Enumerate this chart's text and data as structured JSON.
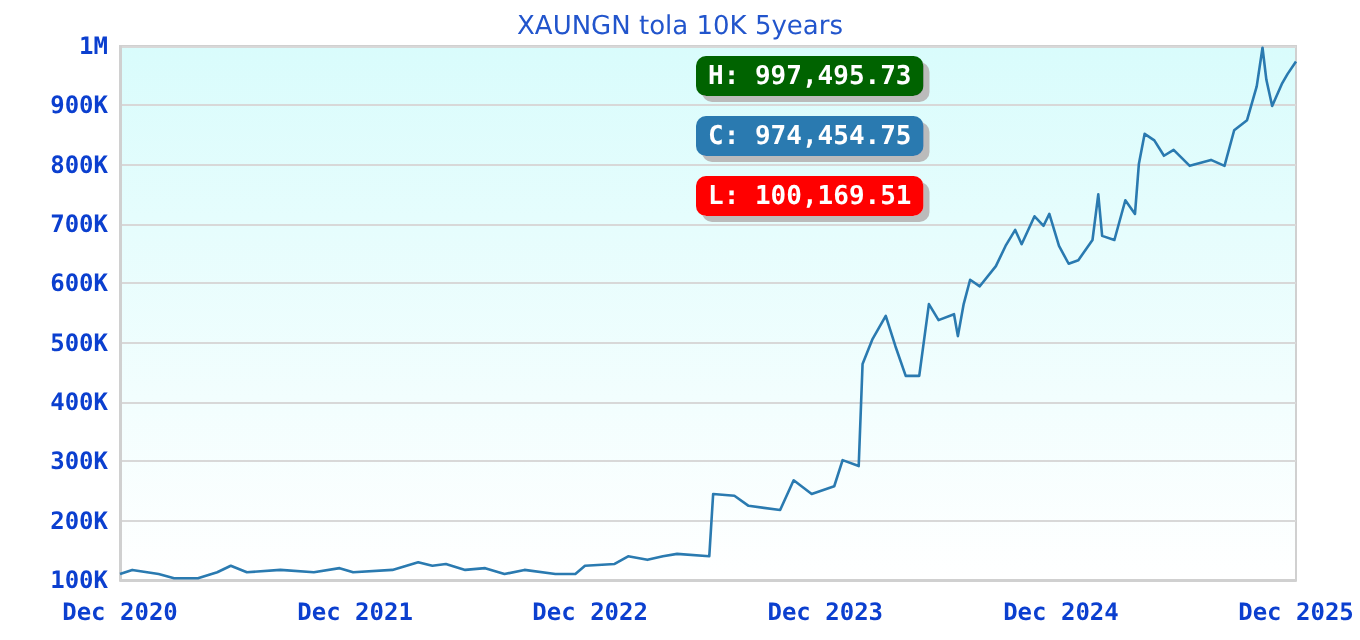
{
  "chart_data": {
    "type": "line",
    "title": "XAUNGN tola 10K 5years",
    "annotations": [
      "H: 997,495.73",
      "C: 974,454.75",
      "L: 100,169.51"
    ],
    "x": [
      "2020-12-01",
      "2020-12-20",
      "2021-01-30",
      "2021-02-23",
      "2021-04-01",
      "2021-05-01",
      "2021-05-22",
      "2021-06-16",
      "2021-08-07",
      "2021-09-28",
      "2021-11-07",
      "2021-11-28",
      "2022-01-28",
      "2022-03-09",
      "2022-03-31",
      "2022-04-21",
      "2022-05-21",
      "2022-06-21",
      "2022-07-21",
      "2022-08-21",
      "2022-10-08",
      "2022-11-08",
      "2022-11-23",
      "2023-01-08",
      "2023-01-29",
      "2023-02-28",
      "2023-03-24",
      "2023-04-15",
      "2023-06-04",
      "2023-06-10",
      "2023-07-13",
      "2023-08-04",
      "2023-09-22",
      "2023-10-13",
      "2023-11-10",
      "2023-12-15",
      "2023-12-28",
      "2024-01-22",
      "2024-01-28",
      "2024-02-12",
      "2024-03-04",
      "2024-03-19",
      "2024-04-04",
      "2024-04-25",
      "2024-05-10",
      "2024-05-25",
      "2024-06-18",
      "2024-06-24",
      "2024-07-03",
      "2024-07-13",
      "2024-07-28",
      "2024-08-22",
      "2024-09-06",
      "2024-09-21",
      "2024-10-01",
      "2024-10-21",
      "2024-11-04",
      "2024-11-13",
      "2024-11-28",
      "2024-12-13",
      "2024-12-28",
      "2025-01-19",
      "2025-01-28",
      "2025-02-03",
      "2025-02-22",
      "2025-03-11",
      "2025-03-26",
      "2025-04-01",
      "2025-04-10",
      "2025-04-25",
      "2025-05-10",
      "2025-05-25",
      "2025-06-19",
      "2025-07-22",
      "2025-08-12",
      "2025-08-27",
      "2025-09-16",
      "2025-10-01",
      "2025-10-10",
      "2025-10-16",
      "2025-10-25",
      "2025-11-09",
      "2025-11-18",
      "2025-12-01"
    ],
    "series": [
      {
        "color": "#2a7ab0",
        "values": [
          110000,
          117000,
          110000,
          103000,
          103000,
          113000,
          124000,
          113000,
          117000,
          113000,
          120000,
          113000,
          117000,
          130000,
          124000,
          127000,
          117000,
          120000,
          110000,
          117000,
          110000,
          110000,
          124000,
          127000,
          140000,
          134000,
          140000,
          144000,
          140000,
          245000,
          242000,
          225000,
          218000,
          268000,
          245000,
          258000,
          302000,
          292000,
          464000,
          505000,
          545000,
          494000,
          444000,
          444000,
          565000,
          538000,
          548000,
          511000,
          565000,
          606000,
          595000,
          629000,
          663000,
          690000,
          666000,
          713000,
          697000,
          717000,
          663000,
          633000,
          639000,
          673000,
          750000,
          680000,
          673000,
          740000,
          717000,
          801000,
          852000,
          841000,
          815000,
          825000,
          798000,
          808000,
          798000,
          858000,
          875000,
          932000,
          997000,
          943000,
          899000,
          936000,
          953000,
          974000
        ]
      }
    ],
    "xlim": [
      "2020-12-01",
      "2025-12-01"
    ],
    "xticks": [
      {
        "value": "2020-12-01",
        "label": "Dec 2020"
      },
      {
        "value": "2021-12-01",
        "label": "Dec 2021"
      },
      {
        "value": "2022-12-01",
        "label": "Dec 2022"
      },
      {
        "value": "2023-12-01",
        "label": "Dec 2023"
      },
      {
        "value": "2024-12-01",
        "label": "Dec 2024"
      },
      {
        "value": "2025-12-01",
        "label": "Dec 2025"
      }
    ],
    "ylim": [
      100000,
      1000000
    ],
    "yticks": [
      {
        "value": 100000,
        "label": "100K"
      },
      {
        "value": 200000,
        "label": "200K"
      },
      {
        "value": 300000,
        "label": "300K"
      },
      {
        "value": 400000,
        "label": "400K"
      },
      {
        "value": 500000,
        "label": "500K"
      },
      {
        "value": 600000,
        "label": "600K"
      },
      {
        "value": 700000,
        "label": "700K"
      },
      {
        "value": 800000,
        "label": "800K"
      },
      {
        "value": 900000,
        "label": "900K"
      },
      {
        "value": 1000000,
        "label": "1M"
      }
    ],
    "grid": "y",
    "marker": "none",
    "line_style": "solid"
  }
}
